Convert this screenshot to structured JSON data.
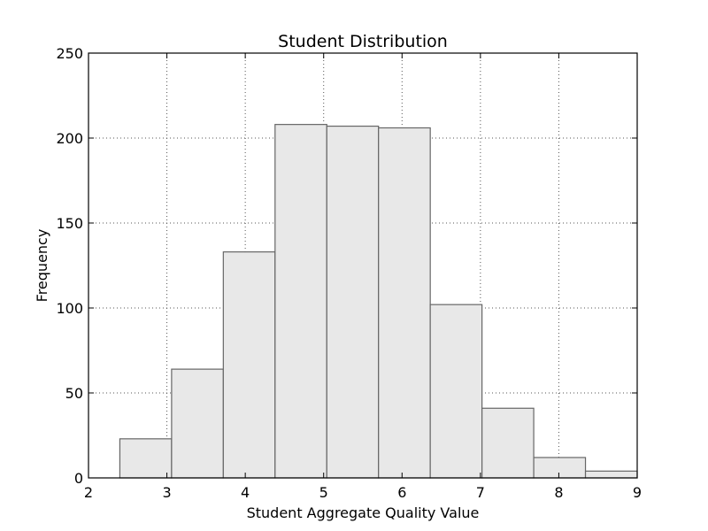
{
  "chart_data": {
    "type": "bar",
    "title": "Student Distribution",
    "xlabel": "Student Aggregate Quality Value",
    "ylabel": "Frequency",
    "xlim": [
      2,
      9
    ],
    "ylim": [
      0,
      250
    ],
    "xticks": [
      2,
      3,
      4,
      5,
      6,
      7,
      8,
      9
    ],
    "yticks": [
      0,
      50,
      100,
      150,
      200,
      250
    ],
    "grid": true,
    "bins": [
      {
        "start": 2.4,
        "end": 3.06,
        "value": 23
      },
      {
        "start": 3.06,
        "end": 3.72,
        "value": 64
      },
      {
        "start": 3.72,
        "end": 4.38,
        "value": 133
      },
      {
        "start": 4.38,
        "end": 5.04,
        "value": 208
      },
      {
        "start": 5.04,
        "end": 5.7,
        "value": 207
      },
      {
        "start": 5.7,
        "end": 6.36,
        "value": 206
      },
      {
        "start": 6.36,
        "end": 7.02,
        "value": 102
      },
      {
        "start": 7.02,
        "end": 7.68,
        "value": 41
      },
      {
        "start": 7.68,
        "end": 8.34,
        "value": 12
      },
      {
        "start": 8.34,
        "end": 9.0,
        "value": 4
      }
    ]
  }
}
